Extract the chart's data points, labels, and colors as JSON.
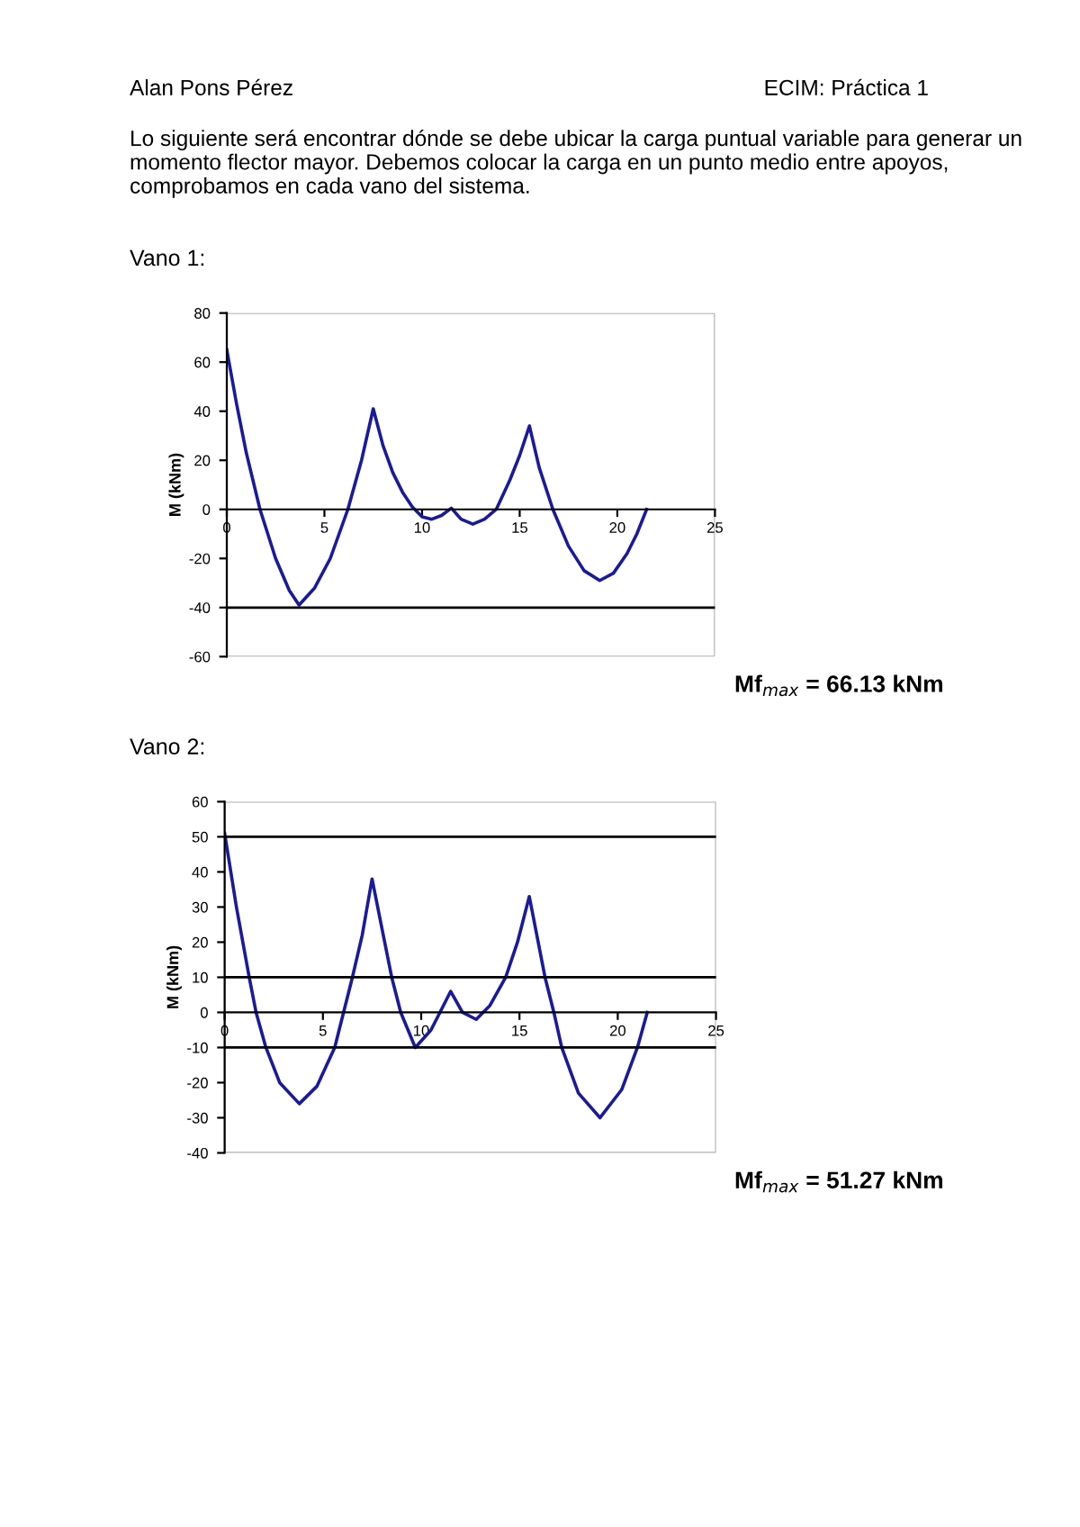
{
  "chart_data": [
    {
      "type": "line",
      "title": "Vano 1:",
      "ylabel": "M (kNm)",
      "xlim": [
        0,
        25
      ],
      "ylim": [
        -60,
        80
      ],
      "xticks": [
        0,
        5,
        10,
        15,
        20,
        25
      ],
      "yticks": [
        -60,
        -40,
        -20,
        0,
        20,
        40,
        60,
        80
      ],
      "grid": false,
      "legend": false,
      "marker": "none",
      "line_style": "solid",
      "annotations": [
        "Alan Pons Pérez",
        "ECIM: Práctica 1",
        "Lo siguiente será encontrar dónde se debe ubicar la carga puntual variable para generar un momento flector mayor. Debemos colocar la carga en un punto medio entre apoyos, comprobamos en cada vano del sistema.",
        "Mf$_{max}$ = 66.13 kNm"
      ],
      "ref_lines": [
        {
          "axis": "y",
          "value": -40,
          "color": "#000000"
        }
      ],
      "series": [
        {
          "color": "#1a1a9c",
          "x": [
            0,
            0.5,
            1,
            1.7,
            2.5,
            3.2,
            3.7,
            4.5,
            5.3,
            6.2,
            6.9,
            7.5,
            8,
            8.5,
            9,
            9.5,
            10,
            10.5,
            11,
            11.5,
            12,
            12.6,
            13.2,
            13.8,
            14.5,
            15,
            15.5,
            16,
            16.7,
            17.5,
            18.3,
            19.1,
            19.8,
            20.5,
            21,
            21.5
          ],
          "values": [
            65,
            43,
            23,
            0,
            -20,
            -33,
            -39,
            -32,
            -20,
            0,
            20,
            41,
            26,
            15,
            7,
            1,
            -3,
            -4,
            -2.5,
            0.5,
            -4,
            -6,
            -4,
            0,
            12,
            22,
            34,
            17,
            0,
            -15,
            -25,
            -29,
            -26,
            -18,
            -10,
            0
          ]
        }
      ]
    },
    {
      "type": "line",
      "title": "Vano 2:",
      "ylabel": "M (kNm)",
      "xlim": [
        0,
        25
      ],
      "ylim": [
        -40,
        60
      ],
      "xticks": [
        0,
        5,
        10,
        15,
        20,
        25
      ],
      "yticks": [
        -40,
        -30,
        -20,
        -10,
        0,
        10,
        20,
        30,
        40,
        50,
        60
      ],
      "grid": false,
      "legend": false,
      "marker": "none",
      "line_style": "solid",
      "annotations": [
        "Mf$_{max}$ = 51.27 kNm"
      ],
      "ref_lines": [
        {
          "axis": "y",
          "value": 50,
          "color": "#000000"
        },
        {
          "axis": "y",
          "value": 10,
          "color": "#000000"
        },
        {
          "axis": "y",
          "value": -10,
          "color": "#000000"
        }
      ],
      "series": [
        {
          "color": "#1a1a9c",
          "x": [
            0,
            0.6,
            1.25,
            1.6,
            2.1,
            2.8,
            3.8,
            4.7,
            5.6,
            6.05,
            6.5,
            7.0,
            7.5,
            8.0,
            8.5,
            8.96,
            9.7,
            10.5,
            11.5,
            12.1,
            12.8,
            13.5,
            14.3,
            14.9,
            15.5,
            16.3,
            16.75,
            17.15,
            18.0,
            19.1,
            20.2,
            21.0,
            21.5
          ],
          "values": [
            51,
            30,
            10,
            0,
            -10,
            -20,
            -26,
            -21,
            -10,
            0,
            10,
            22,
            38,
            24,
            10,
            0,
            -10,
            -5,
            6,
            0,
            -2,
            2,
            10,
            20,
            33,
            10,
            0,
            -10,
            -23,
            -30,
            -22,
            -10,
            0
          ]
        }
      ]
    }
  ]
}
